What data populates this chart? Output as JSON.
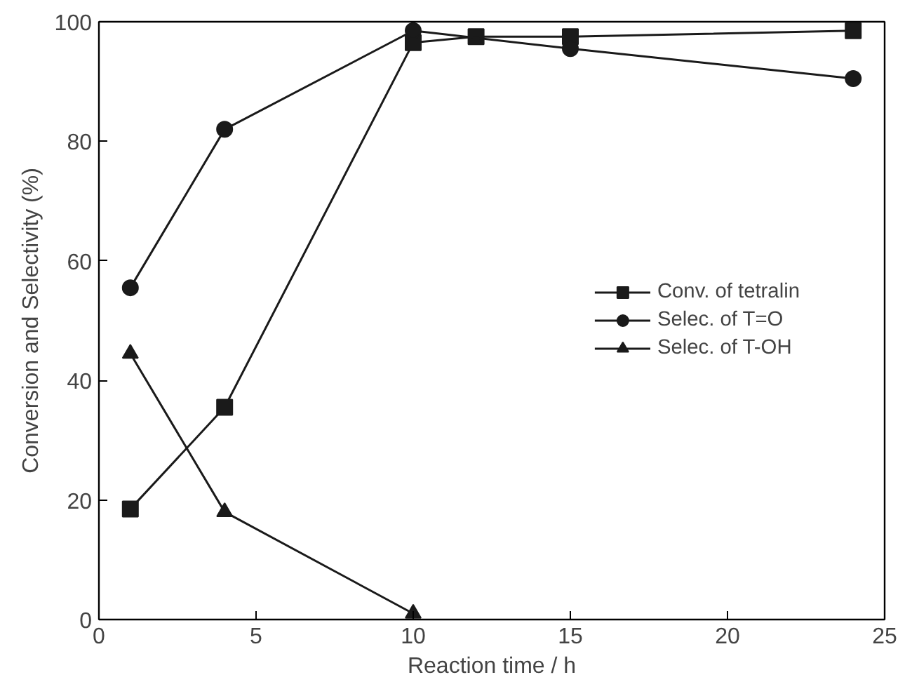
{
  "chart_data": {
    "type": "line",
    "xlabel": "Reaction time / h",
    "ylabel": "Conversion and Selectivity (%)",
    "xlim": [
      0,
      25
    ],
    "xticks": [
      0,
      5,
      10,
      15,
      20,
      25
    ],
    "ylim": [
      0,
      100
    ],
    "yticks": [
      0,
      20,
      40,
      60,
      80,
      100
    ],
    "grid": false,
    "legend": "right",
    "line_style": "solid",
    "series": [
      {
        "name": "Conv. of tetralin",
        "color": "#1a1a1a",
        "marker": "square",
        "x": [
          1,
          4,
          10,
          12,
          15,
          24
        ],
        "values": [
          18.5,
          35.5,
          96.5,
          97.5,
          97.5,
          98.5
        ]
      },
      {
        "name": "Selec. of T=O",
        "color": "#1a1a1a",
        "marker": "circle",
        "x": [
          1,
          4,
          10,
          15,
          24
        ],
        "values": [
          55.5,
          82,
          98.5,
          95.5,
          90.5
        ]
      },
      {
        "name": "Selec. of T-OH",
        "color": "#1a1a1a",
        "marker": "triangle",
        "x": [
          1,
          4,
          10
        ],
        "values": [
          44.5,
          18,
          1
        ]
      }
    ]
  }
}
